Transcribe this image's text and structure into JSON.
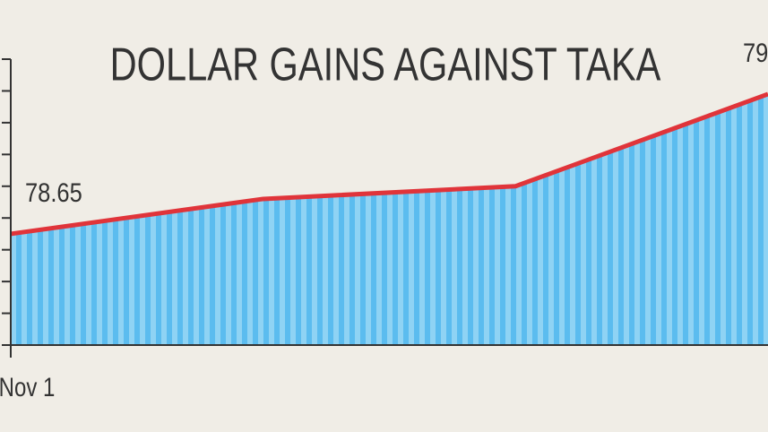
{
  "chart_data": {
    "type": "area",
    "title": "DOLLAR GAINS AGAINST TAKA",
    "categories": [
      "Nov 1",
      null,
      null,
      null
    ],
    "values": [
      78.65,
      78.76,
      78.8,
      79.09
    ],
    "value_labels": [
      "78.65",
      null,
      null,
      "79"
    ],
    "line_color": "#e0343a",
    "fill_color": "#8fd3f4",
    "stripe_color": "#5bbcef",
    "ylim": [
      78.3,
      79.2
    ],
    "yticks": [
      78.3,
      78.4,
      78.5,
      78.6,
      78.7,
      78.8,
      78.9,
      79,
      79.1,
      79.2
    ]
  }
}
